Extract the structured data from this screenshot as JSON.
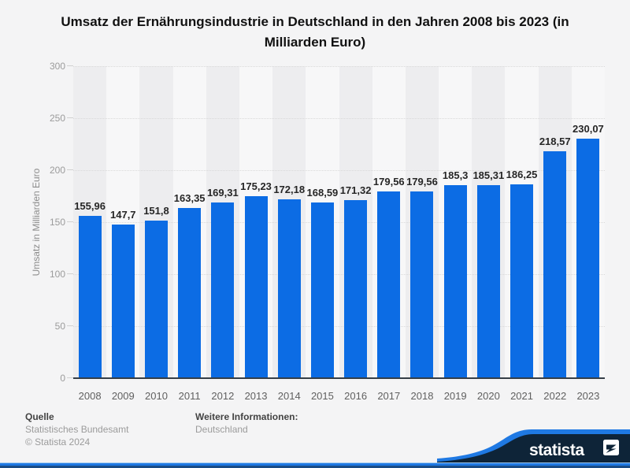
{
  "title": "Umsatz der Ernährungsindustrie in Deutschland in den Jahren 2008 bis 2023 (in Milliarden Euro)",
  "chart_data": {
    "type": "bar",
    "title": "Umsatz der Ernährungsindustrie in Deutschland in den Jahren 2008 bis 2023 (in Milliarden Euro)",
    "xlabel": "",
    "ylabel": "Umsatz in Milliarden Euro",
    "ylim": [
      0,
      300
    ],
    "yticks": [
      0,
      50,
      100,
      150,
      200,
      250,
      300
    ],
    "grid": true,
    "legend": false,
    "categories": [
      "2008",
      "2009",
      "2010",
      "2011",
      "2012",
      "2013",
      "2014",
      "2015",
      "2016",
      "2017",
      "2018",
      "2019",
      "2020",
      "2021",
      "2022",
      "2023"
    ],
    "values": [
      155.96,
      147.7,
      151.8,
      163.35,
      169.31,
      175.23,
      172.18,
      168.59,
      171.32,
      179.56,
      179.56,
      185.3,
      185.31,
      186.25,
      218.57,
      230.07
    ],
    "value_labels": [
      "155,96",
      "147,7",
      "151,8",
      "163,35",
      "169,31",
      "175,23",
      "172,18",
      "168,59",
      "171,32",
      "179,56",
      "179,56",
      "185,3",
      "185,31",
      "186,25",
      "218,57",
      "230,07"
    ],
    "colors": {
      "bar": "#0c6ce4",
      "band_dark": "#ededef",
      "band_light": "#f7f7f8",
      "axis": "#353e47",
      "gridline": "#d9d9d9"
    }
  },
  "footer": {
    "source_label": "Quelle",
    "source": "Statistisches Bundesamt",
    "copyright": "© Statista 2024",
    "info_label": "Weitere Informationen:",
    "info": "Deutschland"
  },
  "branding": {
    "logo_text": "statista",
    "logo_icon": "statista-mark-icon",
    "navy": "#0e2438",
    "blue": "#1f79e3"
  }
}
